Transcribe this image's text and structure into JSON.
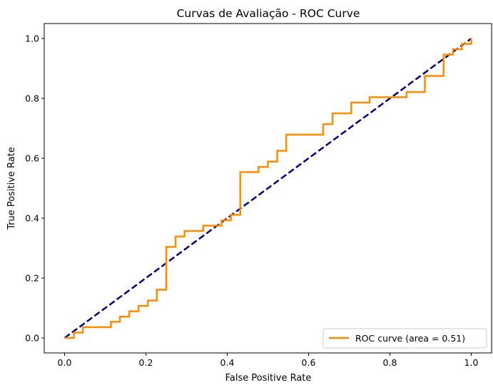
{
  "chart_data": {
    "type": "line",
    "title": "Curvas de Avaliação - ROC Curve",
    "xlabel": "False Positive Rate",
    "ylabel": "True Positive Rate",
    "xlim": [
      -0.05,
      1.05
    ],
    "ylim": [
      -0.05,
      1.05
    ],
    "xticks": [
      0.0,
      0.2,
      0.4,
      0.6,
      0.8,
      1.0
    ],
    "yticks": [
      0.0,
      0.2,
      0.4,
      0.6,
      0.8,
      1.0
    ],
    "xtick_labels": [
      "0.0",
      "0.2",
      "0.4",
      "0.6",
      "0.8",
      "1.0"
    ],
    "ytick_labels": [
      "0.0",
      "0.2",
      "0.4",
      "0.6",
      "0.8",
      "1.0"
    ],
    "grid": false,
    "legend_position": "lower right",
    "series": [
      {
        "name": "ROC curve (area = 0.51)",
        "color": "#ff8c00",
        "style": "solid",
        "x": [
          0.0,
          0.0,
          0.023,
          0.023,
          0.045,
          0.045,
          0.114,
          0.114,
          0.136,
          0.136,
          0.159,
          0.159,
          0.182,
          0.182,
          0.205,
          0.205,
          0.227,
          0.227,
          0.25,
          0.25,
          0.273,
          0.273,
          0.295,
          0.295,
          0.341,
          0.341,
          0.386,
          0.386,
          0.409,
          0.409,
          0.432,
          0.432,
          0.477,
          0.477,
          0.5,
          0.5,
          0.523,
          0.523,
          0.545,
          0.545,
          0.636,
          0.636,
          0.659,
          0.659,
          0.705,
          0.705,
          0.75,
          0.75,
          0.841,
          0.841,
          0.886,
          0.886,
          0.932,
          0.932,
          0.955,
          0.955,
          0.977,
          0.977,
          1.0,
          1.0
        ],
        "y": [
          0.0,
          0.0,
          0.0,
          0.018,
          0.018,
          0.036,
          0.036,
          0.054,
          0.054,
          0.071,
          0.071,
          0.089,
          0.089,
          0.107,
          0.107,
          0.125,
          0.125,
          0.161,
          0.161,
          0.304,
          0.304,
          0.339,
          0.339,
          0.357,
          0.357,
          0.375,
          0.375,
          0.393,
          0.393,
          0.411,
          0.411,
          0.554,
          0.554,
          0.571,
          0.571,
          0.589,
          0.589,
          0.625,
          0.625,
          0.679,
          0.679,
          0.714,
          0.714,
          0.75,
          0.75,
          0.786,
          0.786,
          0.804,
          0.804,
          0.821,
          0.821,
          0.875,
          0.875,
          0.946,
          0.946,
          0.964,
          0.964,
          0.982,
          0.982,
          1.0
        ]
      },
      {
        "color": "#000080",
        "style": "dashed",
        "x": [
          0.0,
          1.0
        ],
        "y": [
          0.0,
          1.0
        ]
      }
    ]
  }
}
